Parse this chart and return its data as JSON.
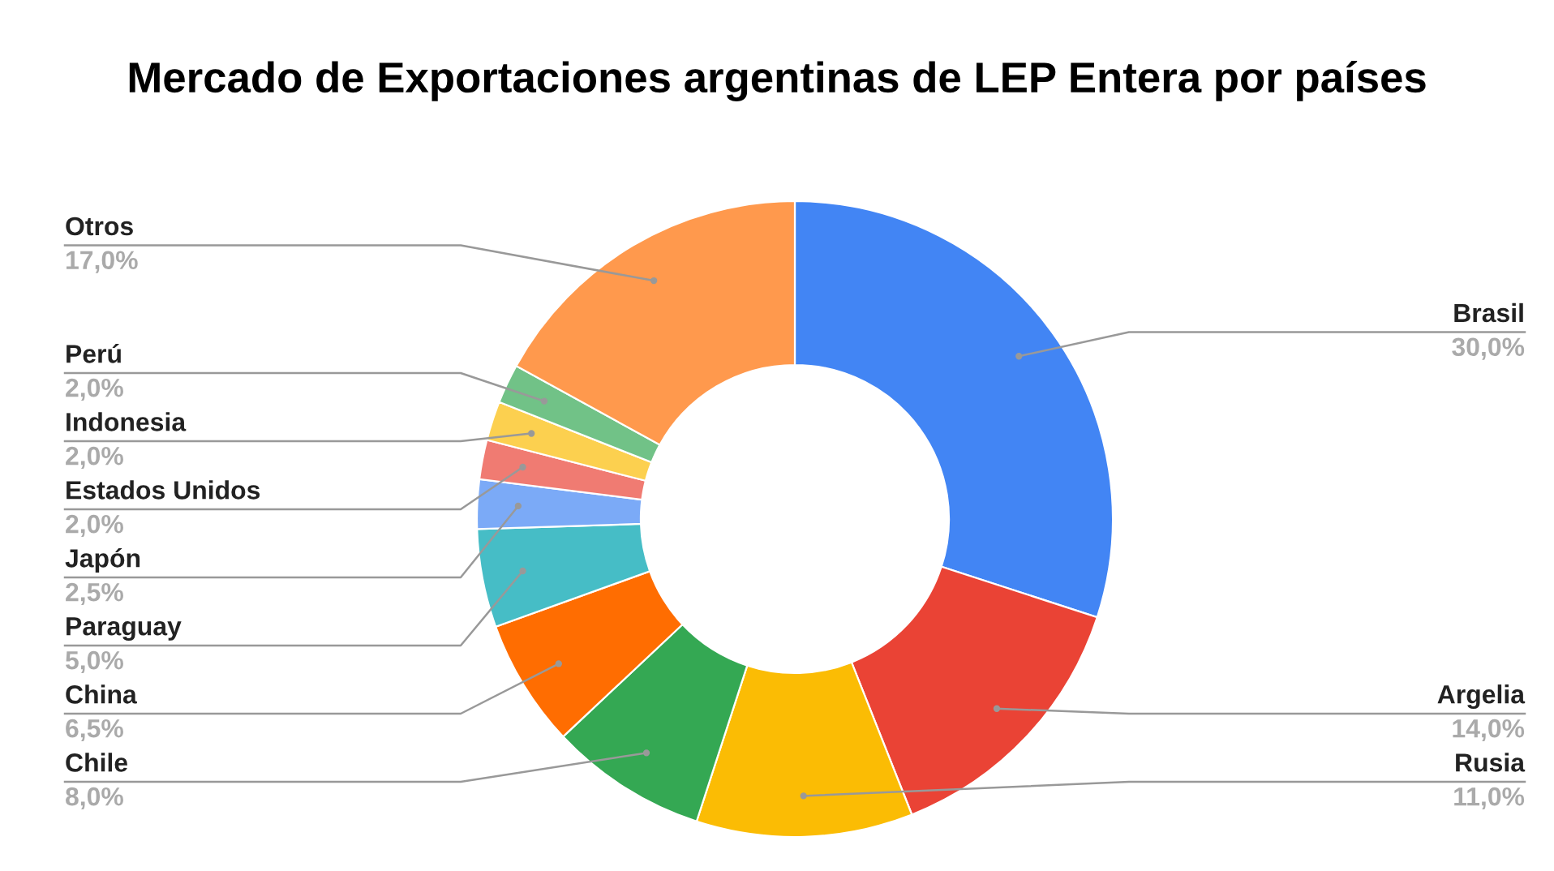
{
  "chart_data": {
    "type": "donut",
    "title": "Mercado de Exportaciones argentinas de LEP Entera por países",
    "categories": [
      "Brasil",
      "Argelia",
      "Rusia",
      "Chile",
      "China",
      "Paraguay",
      "Japón",
      "Estados Unidos",
      "Indonesia",
      "Perú",
      "Otros"
    ],
    "values": [
      30,
      14,
      11,
      8,
      6.5,
      5,
      2.5,
      2,
      2,
      2,
      17
    ],
    "value_labels": [
      "30,0%",
      "14,0%",
      "11,0%",
      "8,0%",
      "6,5%",
      "5,0%",
      "2,5%",
      "2,0%",
      "2,0%",
      "2,0%",
      "17,0%"
    ],
    "colors": [
      "#4285f4",
      "#ea4335",
      "#fbbc04",
      "#34a853",
      "#ff6d01",
      "#46bdc6",
      "#7baaf7",
      "#f07b72",
      "#fcd04f",
      "#71c287",
      "#ff994d"
    ],
    "legend": false
  }
}
